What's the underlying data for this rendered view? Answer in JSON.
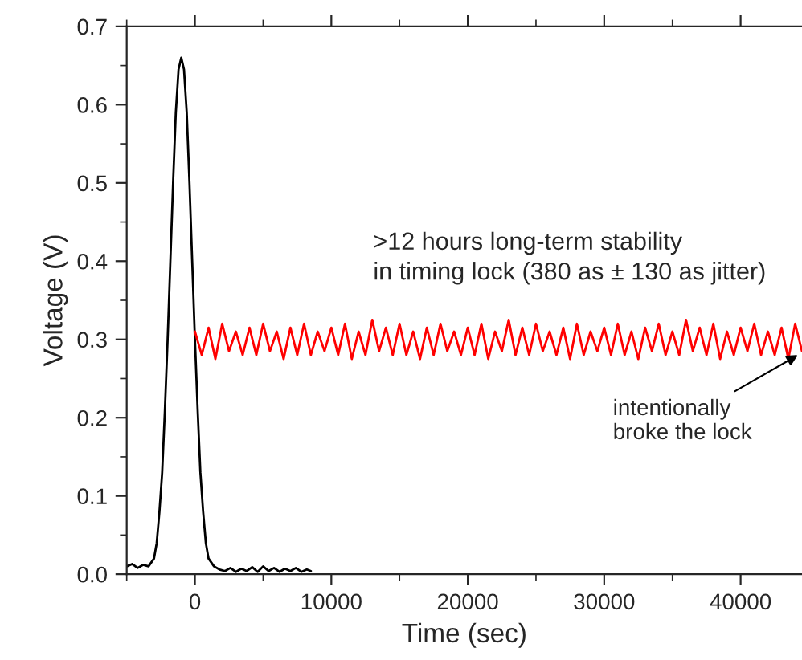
{
  "chart_data": {
    "type": "line",
    "xlabel": "Time (sec)",
    "ylabel": "Voltage (V)",
    "xlim": [
      -5000,
      44500
    ],
    "xticks": [
      0,
      10000,
      20000,
      30000,
      40000
    ],
    "ylim": [
      0,
      0.7
    ],
    "yticks": [
      {
        "value": 0,
        "label": "0.0"
      },
      0.1,
      0.2,
      0.3,
      0.4,
      0.5,
      0.6,
      0.7
    ],
    "grid": false,
    "marker": "none",
    "line_style": "solid",
    "series": [
      {
        "color": "#000000",
        "x": [
          -5000,
          -4600,
          -4200,
          -3800,
          -3400,
          -3000,
          -2800,
          -2600,
          -2400,
          -2200,
          -2000,
          -1800,
          -1600,
          -1400,
          -1200,
          -1000,
          -800,
          -600,
          -400,
          -200,
          0,
          200,
          400,
          600,
          800,
          1000,
          1400,
          1800,
          2200,
          2600,
          3000,
          3400,
          3800,
          4200,
          4600,
          5000,
          5400,
          5800,
          6200,
          6600,
          7000,
          7400,
          7800,
          8200,
          8500
        ],
        "values": [
          0.01,
          0.013,
          0.008,
          0.012,
          0.01,
          0.02,
          0.04,
          0.08,
          0.13,
          0.21,
          0.3,
          0.4,
          0.5,
          0.59,
          0.645,
          0.66,
          0.645,
          0.59,
          0.5,
          0.4,
          0.3,
          0.21,
          0.13,
          0.08,
          0.04,
          0.02,
          0.01,
          0.006,
          0.004,
          0.008,
          0.003,
          0.007,
          0.004,
          0.009,
          0.003,
          0.01,
          0.004,
          0.008,
          0.003,
          0.007,
          0.004,
          0.008,
          0.003,
          0.006,
          0.004
        ]
      },
      {
        "color": "#ff0000",
        "x": [
          0,
          500,
          1000,
          1500,
          2000,
          2500,
          3000,
          3500,
          4000,
          4500,
          5000,
          5500,
          6000,
          6500,
          7000,
          7500,
          8000,
          8500,
          9000,
          9500,
          10000,
          10500,
          11000,
          11500,
          12000,
          12500,
          13000,
          13500,
          14000,
          14500,
          15000,
          15500,
          16000,
          16500,
          17000,
          17500,
          18000,
          18500,
          19000,
          19500,
          20000,
          20500,
          21000,
          21500,
          22000,
          22500,
          23000,
          23500,
          24000,
          24500,
          25000,
          25500,
          26000,
          26500,
          27000,
          27500,
          28000,
          28500,
          29000,
          29500,
          30000,
          30500,
          31000,
          31500,
          32000,
          32500,
          33000,
          33500,
          34000,
          34500,
          35000,
          35500,
          36000,
          36500,
          37000,
          37500,
          38000,
          38500,
          39000,
          39500,
          40000,
          40500,
          41000,
          41500,
          42000,
          42500,
          43000,
          43500,
          44000,
          44500
        ],
        "values": [
          0.31,
          0.28,
          0.315,
          0.275,
          0.32,
          0.285,
          0.31,
          0.28,
          0.315,
          0.28,
          0.32,
          0.285,
          0.31,
          0.275,
          0.315,
          0.28,
          0.32,
          0.28,
          0.31,
          0.285,
          0.315,
          0.28,
          0.32,
          0.275,
          0.31,
          0.28,
          0.325,
          0.285,
          0.315,
          0.28,
          0.32,
          0.28,
          0.31,
          0.275,
          0.315,
          0.28,
          0.32,
          0.285,
          0.31,
          0.28,
          0.315,
          0.28,
          0.32,
          0.275,
          0.31,
          0.285,
          0.325,
          0.28,
          0.315,
          0.28,
          0.32,
          0.285,
          0.31,
          0.28,
          0.315,
          0.275,
          0.32,
          0.28,
          0.31,
          0.285,
          0.315,
          0.28,
          0.32,
          0.28,
          0.31,
          0.275,
          0.315,
          0.285,
          0.32,
          0.28,
          0.31,
          0.28,
          0.325,
          0.285,
          0.315,
          0.28,
          0.32,
          0.275,
          0.31,
          0.28,
          0.315,
          0.285,
          0.32,
          0.28,
          0.31,
          0.28,
          0.315,
          0.275,
          0.32,
          0.285
        ]
      }
    ],
    "annotations": [
      ">12 hours long-term stability\nin timing lock (380 as ± 130 as jitter)",
      {
        "text": "intentionally\nbroke the lock",
        "x": 44200,
        "y": 0.28
      }
    ]
  }
}
